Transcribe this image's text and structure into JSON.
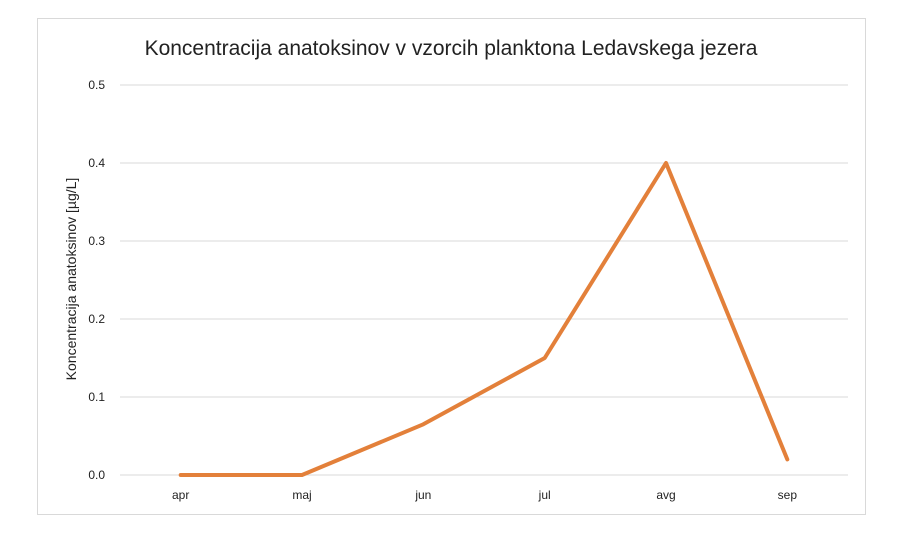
{
  "colors": {
    "series": "#E3803A",
    "grid": "#d9d9d9",
    "text": "#222222",
    "frame": "#d9d9d9"
  },
  "chart_data": {
    "type": "line",
    "title": "Koncentracija anatoksinov v vzorcih planktona Ledavskega jezera",
    "xlabel": "",
    "ylabel": "Koncentracija anatoksinov [µg/L]",
    "categories": [
      "apr",
      "maj",
      "jun",
      "jul",
      "avg",
      "sep"
    ],
    "series": [
      {
        "values": [
          0.0,
          0.0,
          0.065,
          0.15,
          0.4,
          0.02
        ]
      }
    ],
    "ylim": [
      0,
      0.5
    ],
    "yticks": [
      "0.0",
      "0.1",
      "0.2",
      "0.3",
      "0.4",
      "0.5"
    ],
    "grid": true,
    "legend": "none"
  }
}
